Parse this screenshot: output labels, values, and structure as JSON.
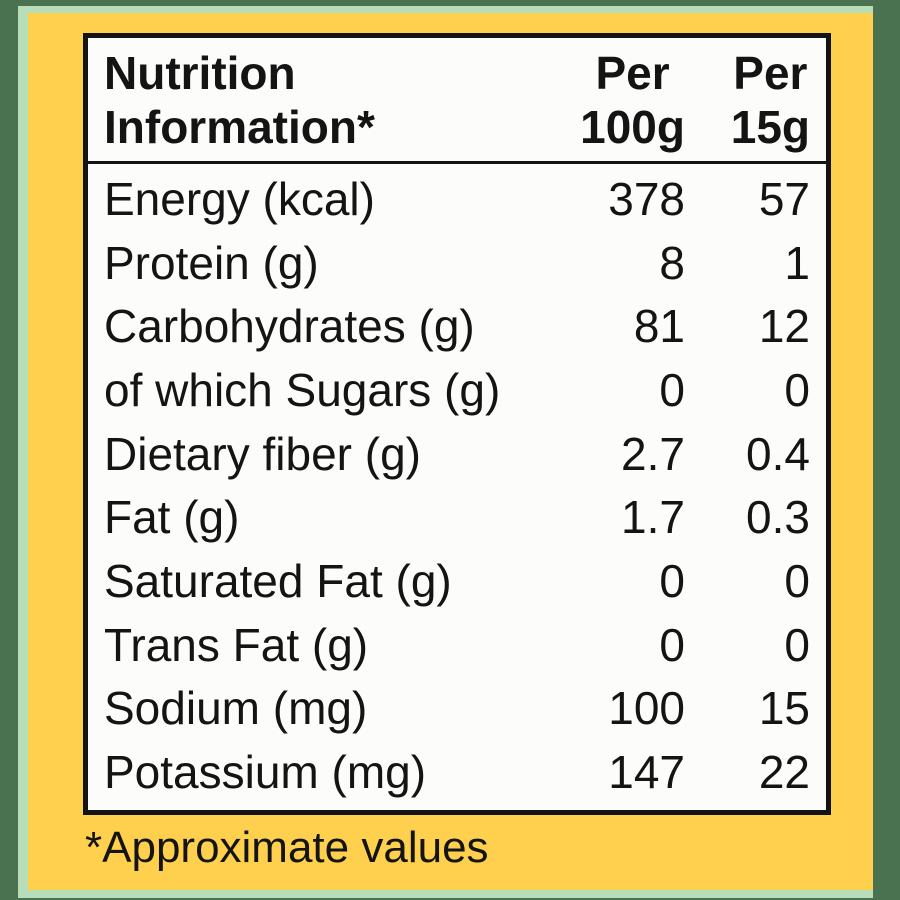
{
  "label": {
    "header": {
      "title": [
        "Nutrition",
        "Information*"
      ],
      "col_per100g": [
        "Per",
        "100g"
      ],
      "col_per15g": [
        "Per",
        "15g"
      ]
    },
    "rows": [
      {
        "name": "Energy (kcal)",
        "per_100g": "378",
        "per_15g": "57"
      },
      {
        "name": "Protein (g)",
        "per_100g": "8",
        "per_15g": "1"
      },
      {
        "name": "Carbohydrates (g)",
        "per_100g": "81",
        "per_15g": "12"
      },
      {
        "name": "of which Sugars (g)",
        "per_100g": "0",
        "per_15g": "0"
      },
      {
        "name": "Dietary fiber (g)",
        "per_100g": "2.7",
        "per_15g": "0.4"
      },
      {
        "name": "Fat (g)",
        "per_100g": "1.7",
        "per_15g": "0.3"
      },
      {
        "name": "Saturated Fat (g)",
        "per_100g": "0",
        "per_15g": "0"
      },
      {
        "name": "Trans Fat (g)",
        "per_100g": "0",
        "per_15g": "0"
      },
      {
        "name": "Sodium (mg)",
        "per_100g": "100",
        "per_15g": "15"
      },
      {
        "name": "Potassium (mg)",
        "per_100g": "147",
        "per_15g": "22"
      }
    ],
    "footnote": "*Approximate values",
    "colors": {
      "background_green": "#4a7150",
      "mint_border": "#b8deb9",
      "label_yellow": "#ffd04d",
      "table_border_black": "#141414",
      "table_background": "#fcfcfa"
    }
  }
}
